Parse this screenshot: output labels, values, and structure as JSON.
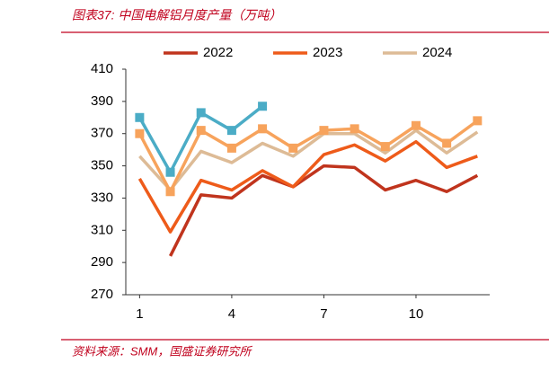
{
  "chart_data": {
    "type": "line",
    "title": "图表37:  中国电解铝月度产量（万吨）",
    "source": "资料来源：SMM，国盛证券研究所",
    "x": [
      1,
      2,
      3,
      4,
      5,
      6,
      7,
      8,
      9,
      10,
      11,
      12
    ],
    "xlim": [
      0.55,
      12.4
    ],
    "xticks": [
      1,
      4,
      7,
      10
    ],
    "ylim": [
      270,
      410
    ],
    "yticks": [
      270,
      290,
      310,
      330,
      350,
      370,
      390,
      410
    ],
    "series": [
      {
        "name": "2022",
        "color": "#c0341d",
        "values": [
          null,
          294,
          332,
          330,
          344,
          337,
          350,
          349,
          335,
          341,
          334,
          344
        ]
      },
      {
        "name": "2023",
        "color": "#ee5b1a",
        "values": [
          342,
          309,
          341,
          335,
          347,
          337,
          357,
          363,
          353,
          365,
          349,
          356
        ]
      },
      {
        "name": "2024",
        "color": "#ddbb96",
        "values": [
          356,
          335,
          359,
          352,
          364,
          356,
          370,
          370,
          358,
          372,
          358,
          371
        ]
      },
      {
        "color": "#f7a35c",
        "marker": "square",
        "values": [
          370,
          334,
          372,
          361,
          373,
          361,
          372,
          373,
          362,
          375,
          364,
          378
        ]
      },
      {
        "color": "#4bacc6",
        "marker": "square",
        "values": [
          380,
          346,
          383,
          372,
          387,
          null,
          null,
          null,
          null,
          null,
          null,
          null
        ]
      }
    ]
  }
}
